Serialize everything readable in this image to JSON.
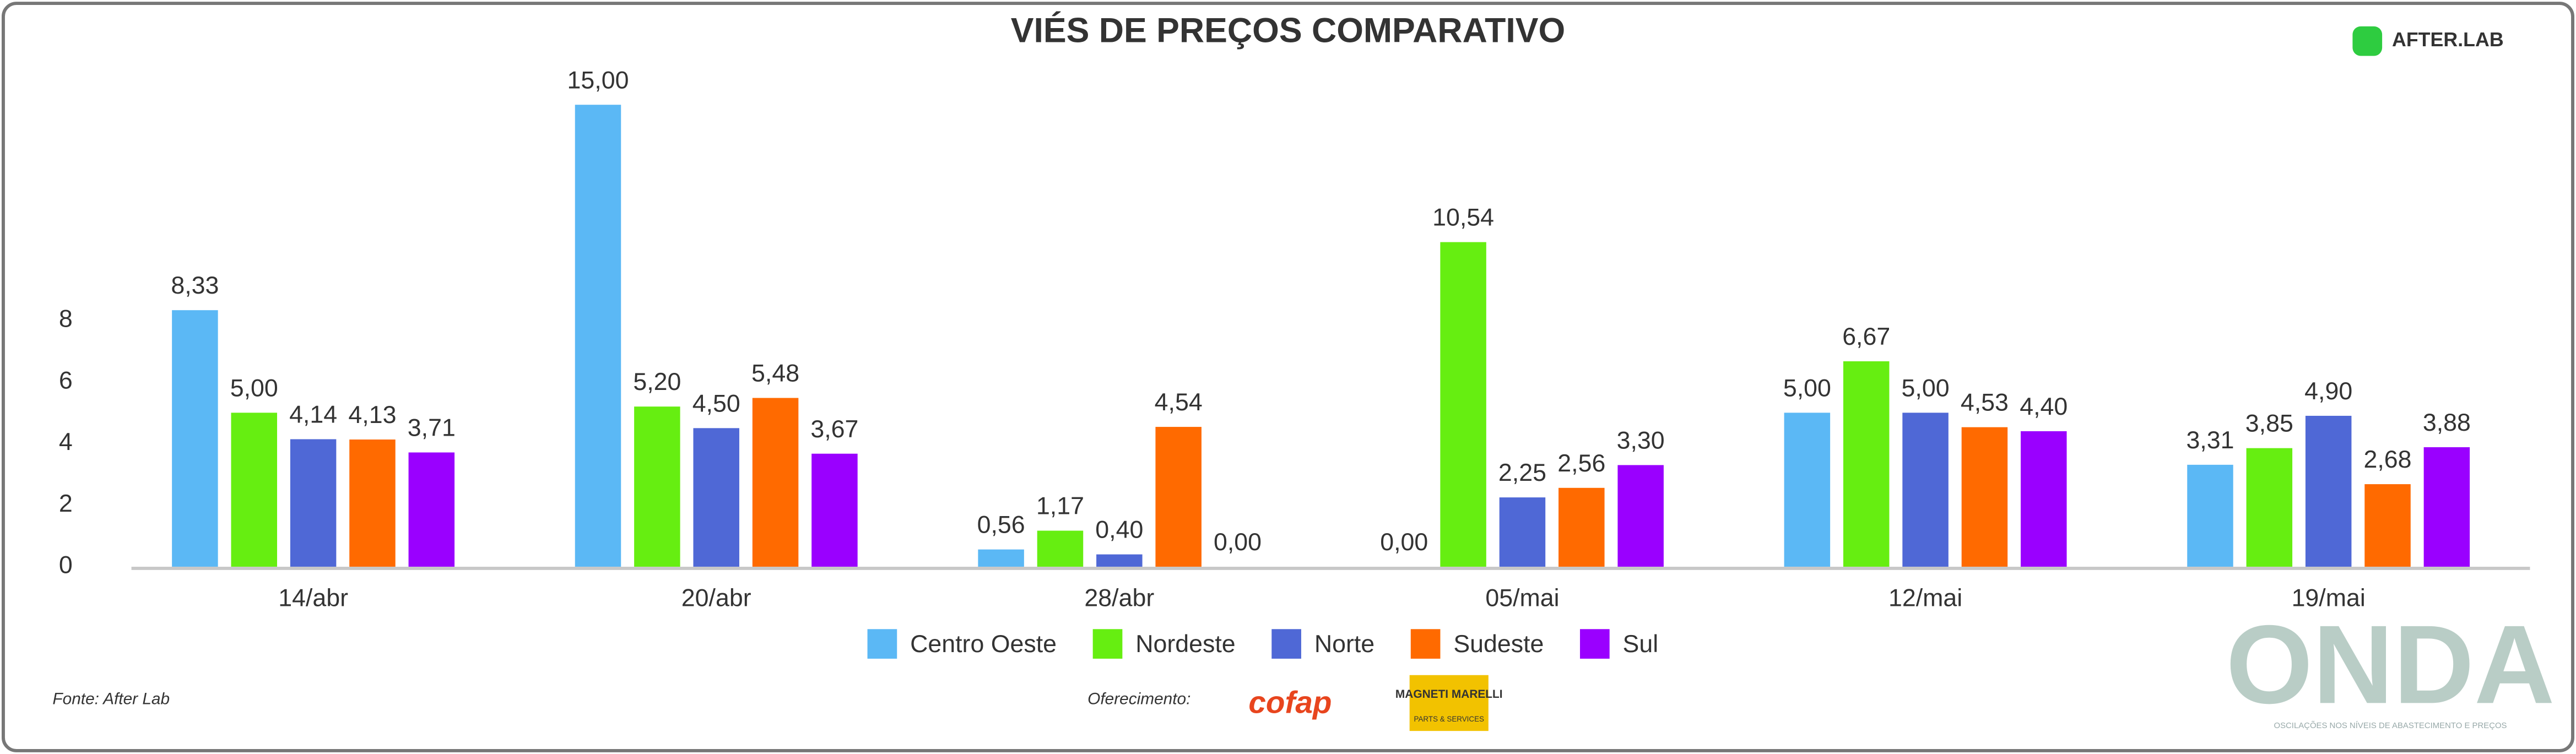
{
  "chart_data": {
    "type": "bar",
    "title": "VIÉS DE PREÇOS COMPARATIVO",
    "categories": [
      "14/abr",
      "20/abr",
      "28/abr",
      "05/mai",
      "12/mai",
      "19/mai"
    ],
    "series": [
      {
        "name": "Centro Oeste",
        "color": "#5bb8f5",
        "values": [
          8.33,
          15.0,
          0.56,
          0.0,
          5.0,
          3.31
        ],
        "value_labels": [
          "8,33",
          "15,00",
          "0,56",
          "0,00",
          "5,00",
          "3,31"
        ]
      },
      {
        "name": "Nordeste",
        "color": "#66ee11",
        "values": [
          5.0,
          5.2,
          1.17,
          10.54,
          6.67,
          3.85
        ],
        "value_labels": [
          "5,00",
          "5,20",
          "1,17",
          "10,54",
          "6,67",
          "3,85"
        ]
      },
      {
        "name": "Norte",
        "color": "#4f68d6",
        "values": [
          4.14,
          4.5,
          0.4,
          2.25,
          5.0,
          4.9
        ],
        "value_labels": [
          "4,14",
          "4,50",
          "0,40",
          "2,25",
          "5,00",
          "4,90"
        ]
      },
      {
        "name": "Sudeste",
        "color": "#ff6a00",
        "values": [
          4.13,
          5.48,
          4.54,
          2.56,
          4.53,
          2.68
        ],
        "value_labels": [
          "4,13",
          "5,48",
          "4,54",
          "2,56",
          "4,53",
          "2,68"
        ]
      },
      {
        "name": "Sul",
        "color": "#9a00ff",
        "values": [
          3.71,
          3.67,
          0.0,
          3.3,
          4.4,
          3.88
        ],
        "value_labels": [
          "3,71",
          "3,67",
          "0,00",
          "3,30",
          "4,40",
          "3,88"
        ]
      }
    ],
    "ylim": [
      0,
      16
    ],
    "yticks": [
      0,
      2,
      4,
      6,
      8
    ],
    "grid": false,
    "legend": "bottom"
  },
  "branding": {
    "logo": "AFTER.LAB",
    "source": "Fonte: After Lab",
    "sponsor_label": "Oferecimento:",
    "sponsor_1": "cofap",
    "sponsor_2": "MAGNETI MARELLI",
    "sponsor_2_sub": "PARTS & SERVICES",
    "brand": "ONDA",
    "brand_sub": "OSCILAÇÕES NOS NÍVEIS DE ABASTECIMENTO E PREÇOS"
  }
}
